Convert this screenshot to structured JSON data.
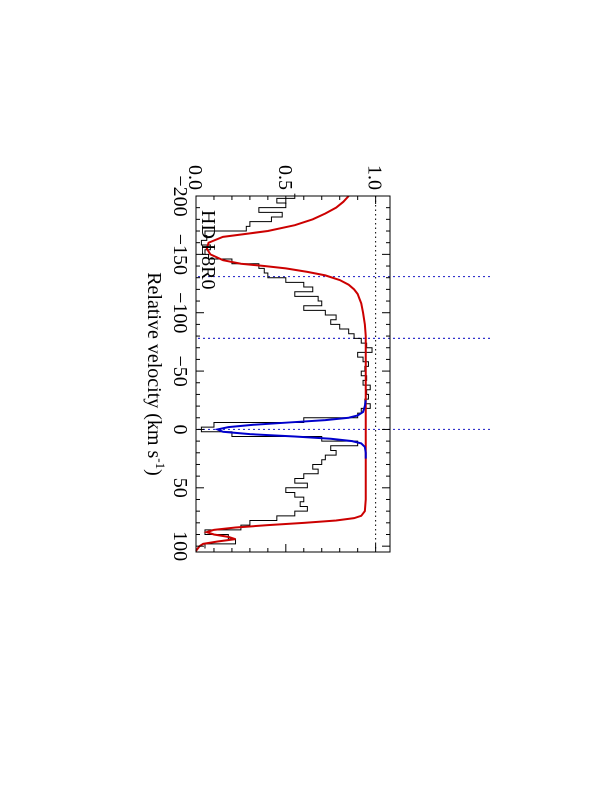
{
  "chart_data": {
    "type": "line",
    "title": "",
    "xlabel": "Relative velocity (km s",
    "xlabel_sup": "-1",
    "xlabel_end": ")",
    "ylabel": "",
    "xlim": [
      -200,
      105
    ],
    "ylim": [
      0.0,
      1.08
    ],
    "x_ticks": [
      -200,
      -150,
      -100,
      -50,
      0,
      50,
      100
    ],
    "x_tick_labels": [
      "−200",
      "−150",
      "−100",
      "−50",
      "0",
      "50",
      "100"
    ],
    "y_ticks": [
      0.0,
      0.5,
      1.0
    ],
    "y_tick_labels": [
      "0.0",
      "0.5",
      "1.0"
    ],
    "annotation": "HD L8R0",
    "orientation": "rotated 90 degrees clockwise",
    "reference_lines": {
      "horizontal": [
        1.0,
        0.0
      ],
      "vertical": [
        -131,
        -78,
        0
      ],
      "horizontal_color": "#000000",
      "vertical_color": "#3333cc"
    },
    "series": [
      {
        "style": "histogram",
        "color": "#000000",
        "x": [
          -200,
          -196,
          -192,
          -188,
          -184,
          -180,
          -176,
          -172,
          -168,
          -164,
          -160,
          -156,
          -152,
          -148,
          -144,
          -140,
          -136,
          -132,
          -128,
          -124,
          -120,
          -116,
          -112,
          -108,
          -104,
          -100,
          -96,
          -92,
          -88,
          -84,
          -80,
          -76,
          -72,
          -68,
          -64,
          -60,
          -56,
          -52,
          -48,
          -44,
          -40,
          -36,
          -32,
          -28,
          -24,
          -20,
          -16,
          -12,
          -8,
          -4,
          0,
          4,
          8,
          12,
          16,
          20,
          24,
          28,
          32,
          36,
          40,
          44,
          48,
          52,
          56,
          60,
          64,
          68,
          72,
          76,
          80,
          84,
          88,
          92,
          96,
          100
        ],
        "y": [
          0.55,
          0.45,
          0.5,
          0.35,
          0.48,
          0.42,
          0.3,
          0.28,
          0.05,
          0.06,
          0.03,
          0.08,
          0.05,
          0.07,
          0.2,
          0.35,
          0.38,
          0.4,
          0.5,
          0.6,
          0.65,
          0.55,
          0.68,
          0.7,
          0.6,
          0.72,
          0.78,
          0.75,
          0.8,
          0.85,
          0.88,
          0.92,
          0.95,
          0.98,
          0.9,
          0.93,
          0.96,
          0.94,
          0.92,
          0.95,
          0.93,
          0.97,
          0.95,
          0.96,
          0.94,
          0.97,
          0.92,
          0.9,
          0.6,
          0.1,
          0.03,
          0.2,
          0.7,
          0.9,
          0.75,
          0.78,
          0.72,
          0.7,
          0.65,
          0.68,
          0.6,
          0.55,
          0.62,
          0.5,
          0.55,
          0.6,
          0.58,
          0.62,
          0.55,
          0.45,
          0.3,
          0.25,
          0.05,
          0.18,
          0.22,
          0.05
        ]
      },
      {
        "style": "line",
        "color": "#cc0000",
        "x": [
          -200,
          -195,
          -190,
          -185,
          -180,
          -175,
          -170,
          -168,
          -165,
          -160,
          -155,
          -150,
          -145,
          -142,
          -140,
          -138,
          -135,
          -132,
          -128,
          -124,
          -120,
          -116,
          -112,
          -108,
          -104,
          -100,
          -95,
          -90,
          -80,
          -70,
          -60,
          -50,
          -40,
          -30,
          -20,
          -10,
          0,
          10,
          20,
          30,
          40,
          50,
          60,
          70,
          74,
          76,
          78,
          80,
          82,
          84,
          86,
          88,
          90,
          92,
          94,
          96,
          98,
          100,
          104
        ],
        "y": [
          0.85,
          0.82,
          0.78,
          0.72,
          0.65,
          0.55,
          0.4,
          0.3,
          0.15,
          0.07,
          0.06,
          0.08,
          0.15,
          0.25,
          0.38,
          0.5,
          0.62,
          0.72,
          0.8,
          0.85,
          0.88,
          0.9,
          0.91,
          0.92,
          0.925,
          0.93,
          0.935,
          0.94,
          0.945,
          0.945,
          0.945,
          0.945,
          0.945,
          0.945,
          0.945,
          0.945,
          0.945,
          0.945,
          0.945,
          0.945,
          0.945,
          0.945,
          0.945,
          0.94,
          0.92,
          0.88,
          0.78,
          0.6,
          0.4,
          0.22,
          0.1,
          0.06,
          0.1,
          0.18,
          0.22,
          0.12,
          0.04,
          0.02,
          0.0
        ]
      },
      {
        "style": "line",
        "color": "#0000cc",
        "x": [
          -25,
          -20,
          -15,
          -12,
          -10,
          -8,
          -6,
          -4,
          -2,
          0,
          2,
          4,
          6,
          8,
          10,
          12,
          15,
          20,
          25
        ],
        "y": [
          0.945,
          0.94,
          0.93,
          0.9,
          0.85,
          0.72,
          0.52,
          0.32,
          0.18,
          0.12,
          0.15,
          0.3,
          0.55,
          0.75,
          0.87,
          0.92,
          0.94,
          0.945,
          0.945
        ]
      }
    ]
  }
}
